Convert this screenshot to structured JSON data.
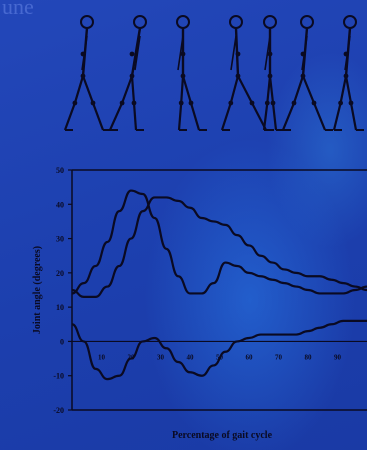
{
  "header_text": "une",
  "colors": {
    "background": "#1f47b8",
    "ink": "#0a0a22"
  },
  "figure": {
    "type": "gait-stick-figures",
    "count": 7
  },
  "chart_data": {
    "type": "line",
    "xlabel": "Percentage of gait cycle",
    "ylabel": "Joint angle (degrees)",
    "xlim": [
      0,
      100
    ],
    "ylim": [
      -20,
      50
    ],
    "y_ticks": [
      -20,
      -10,
      0,
      10,
      20,
      30,
      40,
      50
    ],
    "x_tick_labels": [
      "10",
      "20",
      "30",
      "40",
      "50",
      "60",
      "70",
      "80",
      "90"
    ],
    "x_tick_values": [
      10,
      20,
      30,
      40,
      50,
      60,
      70,
      80,
      90
    ],
    "grid": false,
    "series": [
      {
        "x": [
          0,
          4,
          8,
          12,
          16,
          20,
          24,
          28,
          32,
          36,
          40,
          44,
          48,
          52,
          56,
          60,
          64,
          68,
          72,
          76,
          80,
          84,
          88,
          92,
          96,
          100
        ],
        "values": [
          14,
          17,
          22,
          29,
          38,
          44,
          43,
          36,
          27,
          19,
          14,
          14,
          17,
          23,
          22,
          20,
          19,
          18,
          17,
          16,
          15,
          14,
          14,
          14,
          15,
          16
        ]
      },
      {
        "x": [
          0,
          4,
          8,
          12,
          16,
          20,
          24,
          28,
          32,
          36,
          40,
          44,
          48,
          52,
          56,
          60,
          64,
          68,
          72,
          76,
          80,
          84,
          88,
          92,
          96,
          100
        ],
        "values": [
          15,
          13,
          13,
          16,
          22,
          30,
          38,
          42,
          42,
          41,
          39,
          36,
          35,
          34,
          31,
          28,
          25,
          23,
          21,
          20,
          19,
          19,
          18,
          17,
          16,
          15
        ]
      },
      {
        "x": [
          0,
          4,
          8,
          12,
          16,
          20,
          24,
          28,
          32,
          36,
          40,
          44,
          48,
          52,
          56,
          60,
          64,
          68,
          72,
          76,
          80,
          84,
          88,
          92,
          96,
          100
        ],
        "values": [
          5,
          0,
          -8,
          -11,
          -10,
          -5,
          0,
          1,
          -2,
          -6,
          -9,
          -10,
          -7,
          -3,
          0,
          1,
          2,
          2,
          2,
          2,
          3,
          4,
          5,
          6,
          6,
          6
        ]
      }
    ]
  }
}
